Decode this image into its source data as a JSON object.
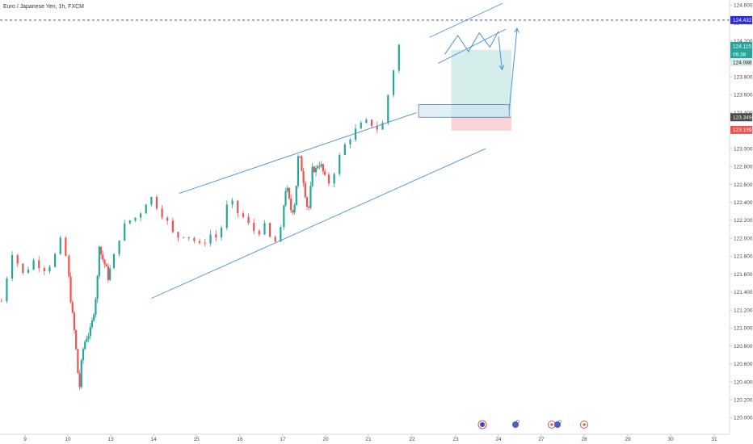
{
  "title": "Euro / Japanese Yen, 1h, FXCM",
  "colors": {
    "up": "#26a69a",
    "down": "#ef5350",
    "channel": "#4a90e2",
    "resistance": "#2a2ad6",
    "target_zone": "#b2dfdb",
    "stop_zone": "#f8c6c6",
    "entry_box": "#cfe2f3"
  },
  "price_tags": {
    "resistance": "124.432",
    "last": "124.115",
    "countdown": "09:38",
    "bid": "124.088",
    "entry": "123.349",
    "stop": "123.199"
  },
  "chart_data": {
    "type": "candlestick",
    "title": "Euro / Japanese Yen, 1h, FXCM",
    "y_ticks": [
      "124.600",
      "124.400",
      "124.200",
      "124.000",
      "123.800",
      "123.600",
      "123.400",
      "123.200",
      "123.000",
      "122.800",
      "122.600",
      "122.400",
      "122.200",
      "122.000",
      "121.800",
      "121.600",
      "121.400",
      "121.200",
      "121.000",
      "120.800",
      "120.600",
      "120.400",
      "120.200",
      "120.000"
    ],
    "ylim": [
      119.95,
      124.62
    ],
    "x_ticks": [
      "9",
      "10",
      "13",
      "14",
      "15",
      "16",
      "17",
      "20",
      "21",
      "22",
      "23",
      "24",
      "27",
      "28",
      "29",
      "30",
      "31"
    ],
    "x_tick_days": [
      9,
      10,
      13,
      14,
      15,
      16,
      17,
      20,
      21,
      22,
      23,
      24,
      27,
      28,
      29,
      30,
      31
    ],
    "xlim": [
      8.45,
      31.2
    ],
    "resistance_level": 124.432,
    "channel": {
      "upper": [
        [
          14.6,
          122.5
        ],
        [
          22.1,
          123.4
        ]
      ],
      "lower": [
        [
          13.95,
          121.33
        ],
        [
          23.7,
          123.0
        ]
      ]
    },
    "trade": {
      "entry": 123.349,
      "target": 124.1,
      "stop": 123.199,
      "start_day": 22.9,
      "end_day": 24.9
    },
    "entry_box": {
      "low": 123.349,
      "high": 123.49,
      "start_day": 22.15,
      "end_day": 24.75
    },
    "projection_channel": {
      "upper": [
        [
          22.4,
          124.24
        ],
        [
          24.3,
          124.62
        ]
      ],
      "lower": [
        [
          22.6,
          123.95
        ],
        [
          24.5,
          124.33
        ]
      ]
    },
    "zigzag": [
      [
        22.75,
        124.05
      ],
      [
        23.05,
        124.26
      ],
      [
        23.3,
        124.08
      ],
      [
        23.55,
        124.29
      ],
      [
        23.8,
        124.13
      ],
      [
        24.0,
        124.31
      ]
    ],
    "arrow_down": [
      [
        24.0,
        124.25
      ],
      [
        24.25,
        123.88
      ]
    ],
    "arrow_up": [
      [
        24.75,
        123.43
      ],
      [
        25.3,
        124.34
      ]
    ],
    "path": [
      [
        8.45,
        121.3
      ],
      [
        8.7,
        121.85
      ],
      [
        8.95,
        121.6
      ],
      [
        9.2,
        121.75
      ],
      [
        9.5,
        121.65
      ],
      [
        9.75,
        121.85
      ],
      [
        9.85,
        122.0
      ],
      [
        10.0,
        121.7
      ],
      [
        10.15,
        121.4
      ],
      [
        10.35,
        121.1
      ],
      [
        10.5,
        120.9
      ],
      [
        10.65,
        120.6
      ],
      [
        10.8,
        120.3
      ],
      [
        10.95,
        120.6
      ],
      [
        11.1,
        120.8
      ],
      [
        11.3,
        120.9
      ],
      [
        11.55,
        120.95
      ],
      [
        11.75,
        121.1
      ],
      [
        11.95,
        121.35
      ],
      [
        12.1,
        121.6
      ],
      [
        12.2,
        121.95
      ],
      [
        12.35,
        121.8
      ],
      [
        12.5,
        121.75
      ],
      [
        12.7,
        121.65
      ],
      [
        12.85,
        121.55
      ],
      [
        13.05,
        121.75
      ],
      [
        13.25,
        122.1
      ],
      [
        13.45,
        122.2
      ],
      [
        13.65,
        122.25
      ],
      [
        13.8,
        122.4
      ],
      [
        13.95,
        122.45
      ],
      [
        14.1,
        122.35
      ],
      [
        14.3,
        122.2
      ],
      [
        14.5,
        122.0
      ],
      [
        14.7,
        122.05
      ],
      [
        14.9,
        122.0
      ],
      [
        15.1,
        121.9
      ],
      [
        15.3,
        122.05
      ],
      [
        15.5,
        122.0
      ],
      [
        15.65,
        122.25
      ],
      [
        15.75,
        122.45
      ],
      [
        15.9,
        122.3
      ],
      [
        16.05,
        122.25
      ],
      [
        16.2,
        122.15
      ],
      [
        16.4,
        122.05
      ],
      [
        16.55,
        122.15
      ],
      [
        16.7,
        122.0
      ],
      [
        16.85,
        121.95
      ],
      [
        17.0,
        122.15
      ],
      [
        17.1,
        122.45
      ],
      [
        17.25,
        122.6
      ],
      [
        17.4,
        122.45
      ],
      [
        17.6,
        122.3
      ],
      [
        17.8,
        122.35
      ],
      [
        17.95,
        122.6
      ],
      [
        18.1,
        122.95
      ],
      [
        18.3,
        122.8
      ],
      [
        18.5,
        122.6
      ],
      [
        18.65,
        122.4
      ],
      [
        18.8,
        122.3
      ],
      [
        18.95,
        122.55
      ],
      [
        19.1,
        122.8
      ],
      [
        19.3,
        122.75
      ],
      [
        19.5,
        122.85
      ],
      [
        19.7,
        122.8
      ],
      [
        19.9,
        122.7
      ],
      [
        20.05,
        122.6
      ],
      [
        20.2,
        122.75
      ],
      [
        20.4,
        123.0
      ],
      [
        20.6,
        123.15
      ],
      [
        20.8,
        123.25
      ],
      [
        21.0,
        123.3
      ],
      [
        21.15,
        123.25
      ],
      [
        21.25,
        123.2
      ],
      [
        21.35,
        123.3
      ],
      [
        21.45,
        123.6
      ],
      [
        21.55,
        123.85
      ],
      [
        21.65,
        124.0
      ],
      [
        21.7,
        124.15
      ],
      [
        21.75,
        124.12
      ]
    ]
  }
}
